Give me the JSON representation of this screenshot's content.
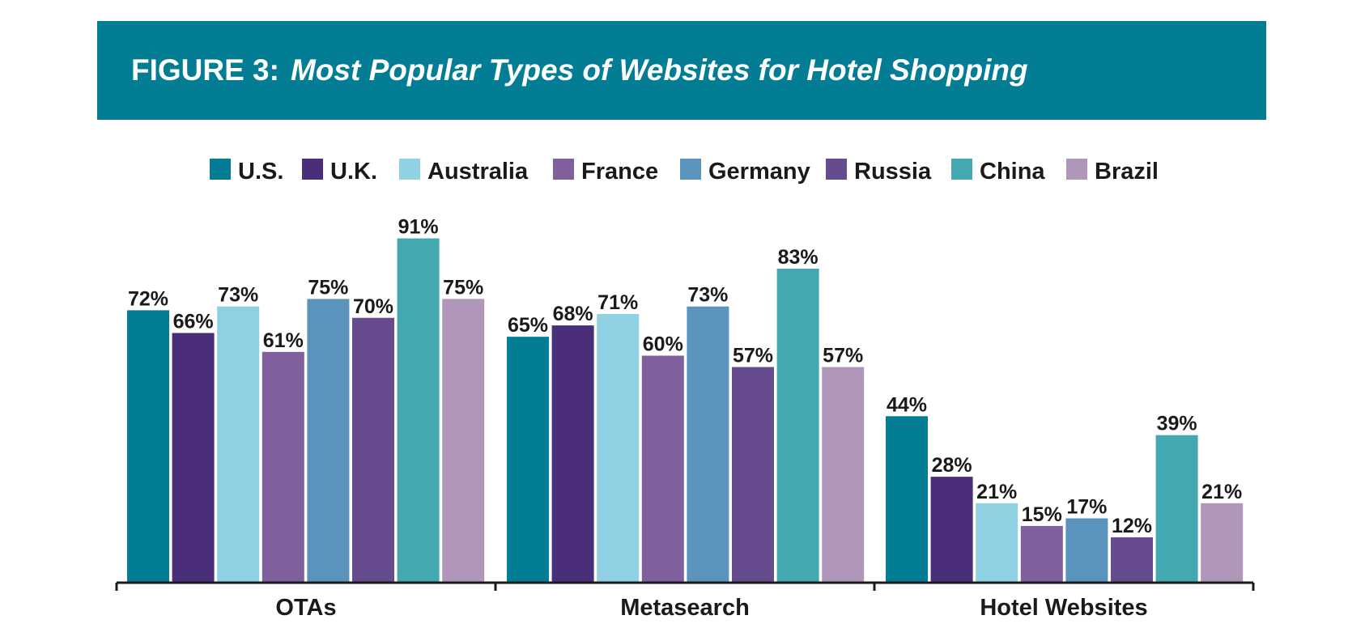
{
  "figure": {
    "label": "FIGURE 3:",
    "title": "Most Popular Types of Websites for Hotel Shopping"
  },
  "chart_data": {
    "type": "bar",
    "title": "Most Popular Types of Websites for Hotel Shopping",
    "xlabel": "",
    "ylabel": "",
    "ylim": [
      0,
      100
    ],
    "grid": false,
    "legend_position": "top-center",
    "value_suffix": "%",
    "categories": [
      "OTAs",
      "Metasearch",
      "Hotel Websites"
    ],
    "series": [
      {
        "name": "U.S.",
        "color": "#037d93",
        "values": [
          72,
          65,
          44
        ]
      },
      {
        "name": "U.K.",
        "color": "#4b2e7a",
        "values": [
          66,
          68,
          28
        ]
      },
      {
        "name": "Australia",
        "color": "#8fd1e2",
        "values": [
          73,
          71,
          21
        ]
      },
      {
        "name": "France",
        "color": "#80609c",
        "values": [
          61,
          60,
          15
        ]
      },
      {
        "name": "Germany",
        "color": "#5a93bb",
        "values": [
          75,
          73,
          17
        ]
      },
      {
        "name": "Russia",
        "color": "#664c8e",
        "values": [
          70,
          57,
          12
        ]
      },
      {
        "name": "China",
        "color": "#43a8b0",
        "values": [
          91,
          83,
          39
        ]
      },
      {
        "name": "Brazil",
        "color": "#b097ba",
        "values": [
          75,
          57,
          21
        ]
      }
    ]
  }
}
